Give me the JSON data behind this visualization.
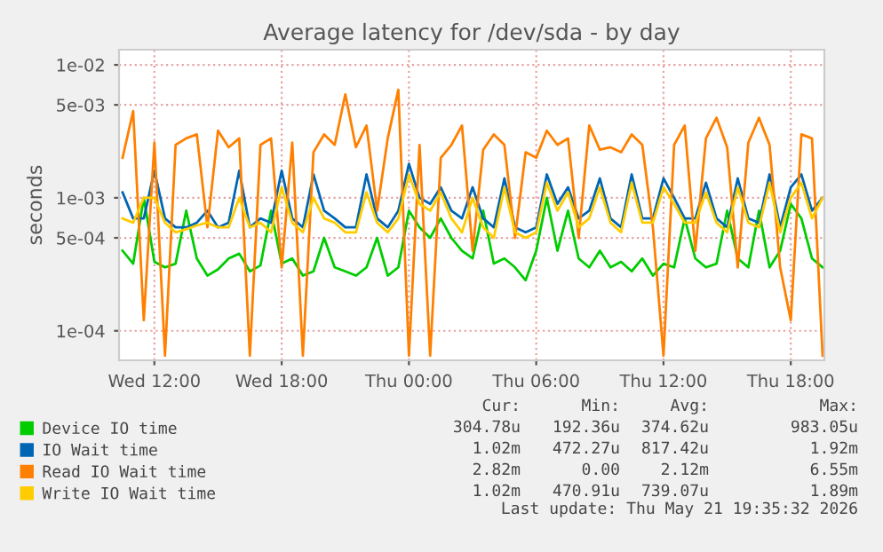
{
  "chart_data": {
    "type": "line",
    "title": "Average latency for /dev/sda - by day",
    "ylabel": "seconds",
    "log": "y",
    "grid": true,
    "legend": "bottom left",
    "marker": "none",
    "line_style": "solid",
    "xlim": [
      "2026-05-20T10:20",
      "2026-05-21T19:35"
    ],
    "xticks": [
      {
        "value": "2026-05-20T12:00",
        "label": "Wed 12:00"
      },
      {
        "value": "2026-05-20T18:00",
        "label": "Wed 18:00"
      },
      {
        "value": "2026-05-21T00:00",
        "label": "Thu 00:00"
      },
      {
        "value": "2026-05-21T06:00",
        "label": "Thu 06:00"
      },
      {
        "value": "2026-05-21T12:00",
        "label": "Thu 12:00"
      },
      {
        "value": "2026-05-21T18:00",
        "label": "Thu 18:00"
      }
    ],
    "ylim": [
      6e-05,
      0.013
    ],
    "yticks": [
      {
        "value": 0.0001,
        "label": "1e-04"
      },
      {
        "value": 0.0005,
        "label": "5e-04"
      },
      {
        "value": 0.001,
        "label": "1e-03"
      },
      {
        "value": 0.005,
        "label": "5e-03"
      },
      {
        "value": 0.01,
        "label": "1e-02"
      }
    ],
    "x": [
      "2026-05-20T10:30",
      "2026-05-20T11:00",
      "2026-05-20T11:30",
      "2026-05-20T12:00",
      "2026-05-20T12:30",
      "2026-05-20T13:00",
      "2026-05-20T13:30",
      "2026-05-20T14:00",
      "2026-05-20T14:30",
      "2026-05-20T15:00",
      "2026-05-20T15:30",
      "2026-05-20T16:00",
      "2026-05-20T16:30",
      "2026-05-20T17:00",
      "2026-05-20T17:30",
      "2026-05-20T18:00",
      "2026-05-20T18:30",
      "2026-05-20T19:00",
      "2026-05-20T19:30",
      "2026-05-20T20:00",
      "2026-05-20T20:30",
      "2026-05-20T21:00",
      "2026-05-20T21:30",
      "2026-05-20T22:00",
      "2026-05-20T22:30",
      "2026-05-20T23:00",
      "2026-05-20T23:30",
      "2026-05-21T00:00",
      "2026-05-21T00:30",
      "2026-05-21T01:00",
      "2026-05-21T01:30",
      "2026-05-21T02:00",
      "2026-05-21T02:30",
      "2026-05-21T03:00",
      "2026-05-21T03:30",
      "2026-05-21T04:00",
      "2026-05-21T04:30",
      "2026-05-21T05:00",
      "2026-05-21T05:30",
      "2026-05-21T06:00",
      "2026-05-21T06:30",
      "2026-05-21T07:00",
      "2026-05-21T07:30",
      "2026-05-21T08:00",
      "2026-05-21T08:30",
      "2026-05-21T09:00",
      "2026-05-21T09:30",
      "2026-05-21T10:00",
      "2026-05-21T10:30",
      "2026-05-21T11:00",
      "2026-05-21T11:30",
      "2026-05-21T12:00",
      "2026-05-21T12:30",
      "2026-05-21T13:00",
      "2026-05-21T13:30",
      "2026-05-21T14:00",
      "2026-05-21T14:30",
      "2026-05-21T15:00",
      "2026-05-21T15:30",
      "2026-05-21T16:00",
      "2026-05-21T16:30",
      "2026-05-21T17:00",
      "2026-05-21T17:30",
      "2026-05-21T18:00",
      "2026-05-21T18:30",
      "2026-05-21T19:00",
      "2026-05-21T19:30"
    ],
    "series": [
      {
        "name": "Device IO time",
        "color": "#00cc00",
        "values": [
          0.0004,
          0.00032,
          0.001,
          0.00033,
          0.0003,
          0.00032,
          0.0008,
          0.00035,
          0.00026,
          0.00029,
          0.00035,
          0.00038,
          0.00028,
          0.00031,
          0.0008,
          0.00032,
          0.00035,
          0.00026,
          0.00028,
          0.0005,
          0.0003,
          0.00028,
          0.00026,
          0.0003,
          0.0005,
          0.00026,
          0.0003,
          0.0008,
          0.0006,
          0.0005,
          0.0007,
          0.0005,
          0.0004,
          0.00035,
          0.0008,
          0.00032,
          0.00035,
          0.0003,
          0.00024,
          0.0004,
          0.001,
          0.0004,
          0.0008,
          0.00035,
          0.0003,
          0.0004,
          0.0003,
          0.00033,
          0.00028,
          0.00035,
          0.00026,
          0.00032,
          0.0003,
          0.0007,
          0.00035,
          0.0003,
          0.00032,
          0.0008,
          0.00035,
          0.0003,
          0.0008,
          0.0003,
          0.0004,
          0.0009,
          0.0007,
          0.00035,
          0.0003
        ]
      },
      {
        "name": "IO Wait time",
        "color": "#0066b3",
        "values": [
          0.0011,
          0.0007,
          0.0007,
          0.0016,
          0.0007,
          0.0006,
          0.0006,
          0.00065,
          0.0008,
          0.0006,
          0.00065,
          0.0016,
          0.0006,
          0.0007,
          0.00065,
          0.0016,
          0.0007,
          0.0006,
          0.0015,
          0.0008,
          0.0007,
          0.0006,
          0.0006,
          0.0015,
          0.0007,
          0.0006,
          0.0008,
          0.0018,
          0.001,
          0.0009,
          0.0012,
          0.0008,
          0.0007,
          0.0012,
          0.0007,
          0.0006,
          0.0014,
          0.0006,
          0.00055,
          0.0006,
          0.0015,
          0.0009,
          0.0012,
          0.0007,
          0.0008,
          0.0014,
          0.0007,
          0.0006,
          0.0015,
          0.0007,
          0.0007,
          0.0014,
          0.001,
          0.0007,
          0.0007,
          0.0013,
          0.0007,
          0.0006,
          0.0014,
          0.0007,
          0.00065,
          0.0015,
          0.0006,
          0.0012,
          0.0015,
          0.0008,
          0.001
        ]
      },
      {
        "name": "Read IO Wait time",
        "color": "#ff8000",
        "values": [
          0.002,
          0.0045,
          0.00012,
          0.0026,
          6.5e-05,
          0.0025,
          0.0028,
          0.003,
          0.0006,
          0.0032,
          0.0024,
          0.0028,
          6.5e-05,
          0.0025,
          0.0028,
          0.0003,
          0.0026,
          6.5e-05,
          0.0022,
          0.003,
          0.0025,
          0.006,
          0.0024,
          0.0035,
          0.0008,
          0.0028,
          0.0065,
          6.5e-05,
          0.0025,
          6.5e-05,
          0.002,
          0.0025,
          0.0035,
          0.0004,
          0.0023,
          0.003,
          0.0025,
          0.0005,
          0.0022,
          0.002,
          0.0032,
          0.0025,
          0.0028,
          0.0005,
          0.0035,
          0.0023,
          0.0024,
          0.0022,
          0.003,
          0.0025,
          0.0006,
          6.5e-05,
          0.0025,
          0.0035,
          0.0004,
          0.0028,
          0.004,
          0.0024,
          0.0003,
          0.0026,
          0.004,
          0.0025,
          0.0003,
          0.00012,
          0.003,
          0.0028,
          6.5e-05
        ]
      },
      {
        "name": "Write IO Wait time",
        "color": "#ffcc00",
        "values": [
          0.0007,
          0.00065,
          0.001,
          0.001,
          0.00065,
          0.00055,
          0.00058,
          0.00062,
          0.00065,
          0.0006,
          0.0006,
          0.001,
          0.0006,
          0.00065,
          0.00055,
          0.0012,
          0.00065,
          0.00055,
          0.001,
          0.0007,
          0.00065,
          0.00055,
          0.00055,
          0.0011,
          0.00065,
          0.00055,
          0.0007,
          0.0015,
          0.0009,
          0.0008,
          0.0011,
          0.0007,
          0.00055,
          0.001,
          0.0006,
          0.0005,
          0.0012,
          0.00055,
          0.0005,
          0.00055,
          0.0013,
          0.0008,
          0.0011,
          0.0006,
          0.0007,
          0.0012,
          0.00065,
          0.00055,
          0.0013,
          0.00065,
          0.00065,
          0.0012,
          0.0009,
          0.00065,
          0.00065,
          0.0011,
          0.00065,
          0.00055,
          0.0012,
          0.00065,
          0.0006,
          0.0013,
          0.00055,
          0.001,
          0.0013,
          0.0007,
          0.001
        ]
      }
    ],
    "annotations": [
      "Cur:",
      "Min:",
      "Avg:",
      "Max:",
      "304.78u",
      "192.36u",
      "374.62u",
      "983.05u",
      "1.02m",
      "472.27u",
      "817.42u",
      "1.92m",
      "2.82m",
      "0.00",
      "2.12m",
      "6.55m",
      "1.02m",
      "470.91u",
      "739.07u",
      "1.89m",
      "Last update: Thu May 21 19:35:32 2026"
    ]
  }
}
